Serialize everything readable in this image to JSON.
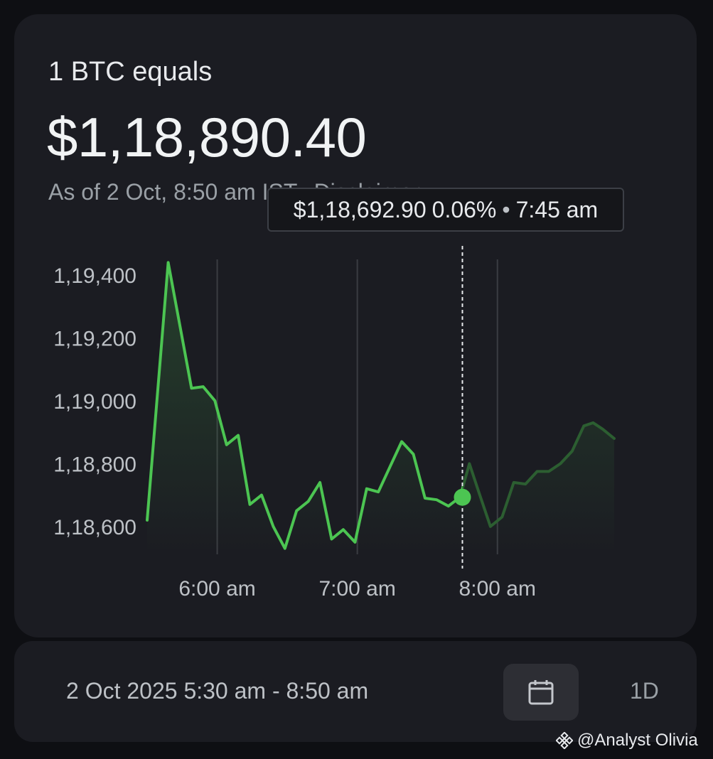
{
  "header": {
    "title": "1 BTC equals",
    "price": "$1,18,890.40",
    "as_of": "As of 2 Oct, 8:50 am IST",
    "separator": "•",
    "disclaimer": "Disclaimer"
  },
  "tooltip": {
    "price": "$1,18,692.90",
    "change": "0.06%",
    "separator": "•",
    "time": "7:45 am"
  },
  "colors": {
    "line": "#4cc552",
    "line_dim": "#2c5e31",
    "grid": "#3a3c42",
    "card": "#1b1c22",
    "background": "#0e0f13"
  },
  "chart_data": {
    "type": "line",
    "title": "",
    "xlabel": "",
    "ylabel": "",
    "x_tick_labels": [
      "6:00 am",
      "7:00 am",
      "8:00 am"
    ],
    "x_tick_values": [
      360,
      420,
      480
    ],
    "y_tick_labels": [
      "1,19,400",
      "1,19,200",
      "1,19,000",
      "1,18,800",
      "1,18,600"
    ],
    "y_tick_values": [
      119400,
      119200,
      119000,
      118800,
      118600
    ],
    "xlim": [
      330,
      530
    ],
    "ylim": [
      118500,
      119450
    ],
    "grid": "vertical",
    "highlight": {
      "x": 465,
      "y": 118692.9
    },
    "series": [
      {
        "x": [
          330,
          339,
          349,
          354,
          359,
          364,
          369,
          374,
          379,
          384,
          389,
          394,
          399,
          404,
          409,
          414,
          419,
          424,
          429,
          434,
          439,
          444,
          449,
          454,
          459,
          464,
          468,
          472,
          477,
          482,
          487,
          492,
          497,
          502,
          507,
          512,
          517,
          521,
          525,
          530
        ],
        "y": [
          118620,
          119440,
          119040,
          119045,
          119000,
          118860,
          118890,
          118670,
          118700,
          118600,
          118530,
          118650,
          118680,
          118740,
          118560,
          118590,
          118550,
          118720,
          118710,
          118790,
          118870,
          118830,
          118690,
          118685,
          118665,
          118693,
          118800,
          118710,
          118600,
          118630,
          118740,
          118735,
          118775,
          118775,
          118800,
          118840,
          118920,
          118930,
          118910,
          118880
        ]
      }
    ]
  },
  "footer": {
    "date_range": "2 Oct 2025 5:30 am - 8:50 am",
    "calendar_icon": "calendar-icon",
    "period": "1D"
  },
  "watermark": {
    "logo": "binance-logo-icon",
    "text": "@Analyst Olivia"
  }
}
